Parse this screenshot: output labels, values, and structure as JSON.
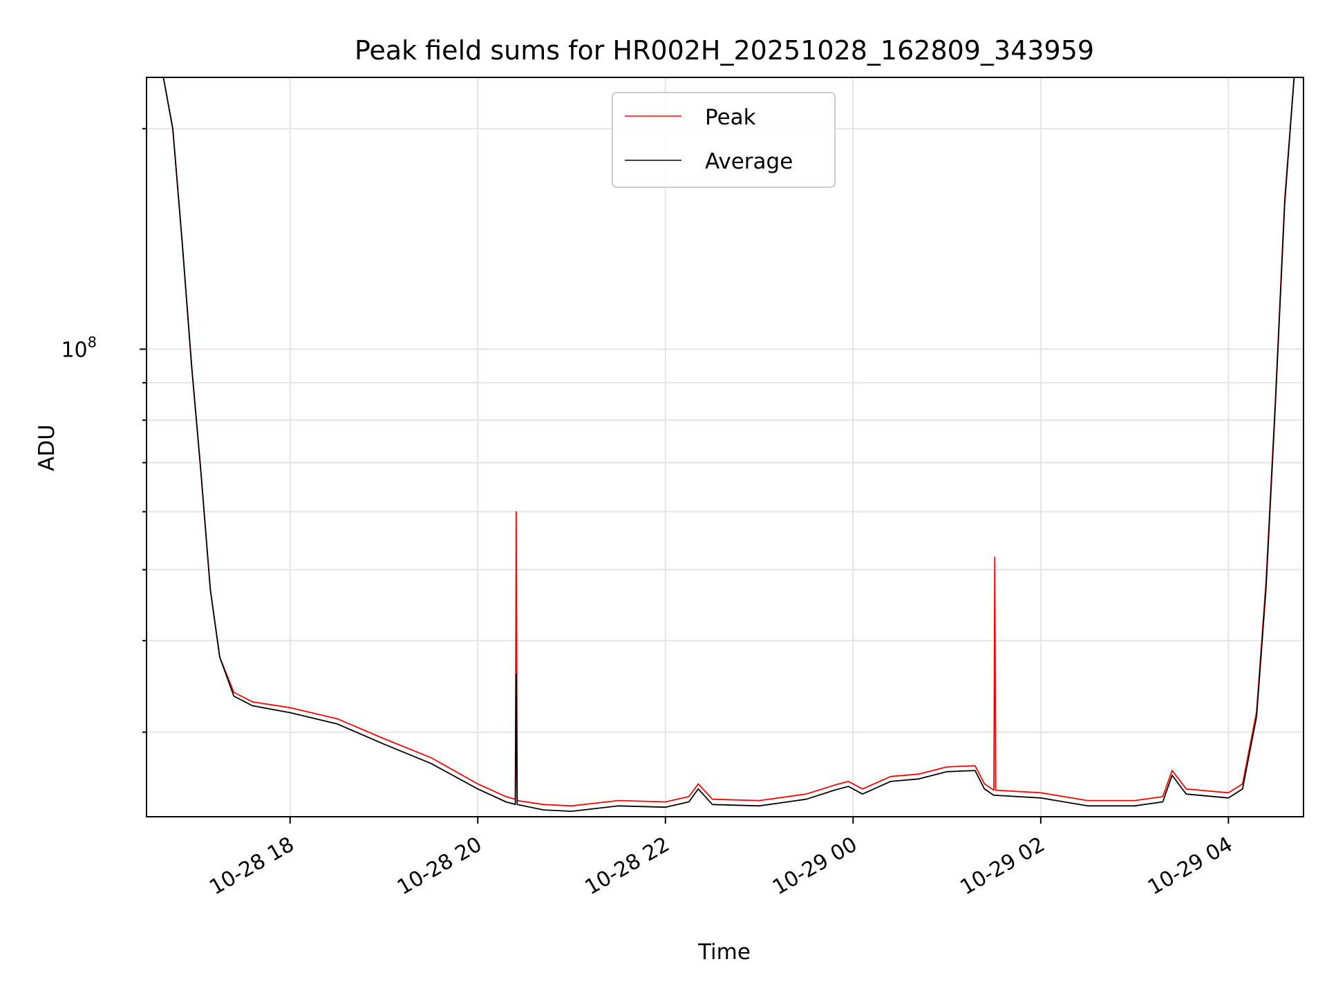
{
  "chart_data": {
    "type": "line",
    "title": "Peak field sums for HR002H_20251028_162809_343959",
    "xlabel": "Time",
    "ylabel": "ADU",
    "yscale": "log",
    "ylim": [
      23000000,
      235000000
    ],
    "xlim_hours": [
      16.47,
      28.8
    ],
    "grid": true,
    "legend_position": "top-center",
    "y_tick_label": {
      "base": "10",
      "exp": "8",
      "value": 100000000
    },
    "x_ticks": [
      {
        "hour": 18,
        "label": "10-28 18"
      },
      {
        "hour": 20,
        "label": "10-28 20"
      },
      {
        "hour": 22,
        "label": "10-28 22"
      },
      {
        "hour": 24,
        "label": "10-29 00"
      },
      {
        "hour": 26,
        "label": "10-29 02"
      },
      {
        "hour": 28,
        "label": "10-29 04"
      }
    ],
    "series": [
      {
        "name": "Peak",
        "color": "#ff0000",
        "points": [
          [
            16.65,
            235000000
          ],
          [
            16.75,
            200000000
          ],
          [
            16.85,
            140000000
          ],
          [
            16.95,
            95000000
          ],
          [
            17.05,
            68000000
          ],
          [
            17.15,
            47000000
          ],
          [
            17.25,
            38000000
          ],
          [
            17.4,
            34000000
          ],
          [
            17.6,
            33000000
          ],
          [
            18.0,
            32400000
          ],
          [
            18.5,
            31300000
          ],
          [
            19.0,
            29400000
          ],
          [
            19.5,
            27700000
          ],
          [
            20.0,
            25500000
          ],
          [
            20.3,
            24500000
          ],
          [
            20.4,
            24300000
          ],
          [
            20.41,
            60000000
          ],
          [
            20.42,
            24200000
          ],
          [
            20.7,
            23900000
          ],
          [
            21.0,
            23800000
          ],
          [
            21.5,
            24200000
          ],
          [
            22.0,
            24100000
          ],
          [
            22.25,
            24500000
          ],
          [
            22.35,
            25500000
          ],
          [
            22.5,
            24300000
          ],
          [
            23.0,
            24200000
          ],
          [
            23.5,
            24700000
          ],
          [
            23.8,
            25400000
          ],
          [
            23.95,
            25700000
          ],
          [
            24.1,
            25100000
          ],
          [
            24.4,
            26100000
          ],
          [
            24.7,
            26300000
          ],
          [
            25.0,
            26900000
          ],
          [
            25.3,
            27000000
          ],
          [
            25.4,
            25500000
          ],
          [
            25.5,
            25000000
          ],
          [
            25.51,
            52000000
          ],
          [
            25.52,
            25000000
          ],
          [
            26.0,
            24800000
          ],
          [
            26.5,
            24200000
          ],
          [
            27.0,
            24200000
          ],
          [
            27.3,
            24500000
          ],
          [
            27.4,
            26600000
          ],
          [
            27.55,
            25100000
          ],
          [
            28.0,
            24800000
          ],
          [
            28.15,
            25500000
          ],
          [
            28.3,
            32000000
          ],
          [
            28.4,
            48000000
          ],
          [
            28.5,
            85000000
          ],
          [
            28.6,
            160000000
          ],
          [
            28.7,
            235000000
          ]
        ]
      },
      {
        "name": "Average",
        "color": "#000000",
        "points": [
          [
            16.65,
            235000000
          ],
          [
            16.75,
            200000000
          ],
          [
            16.85,
            140000000
          ],
          [
            16.95,
            95000000
          ],
          [
            17.05,
            68000000
          ],
          [
            17.15,
            47000000
          ],
          [
            17.25,
            38000000
          ],
          [
            17.4,
            33600000
          ],
          [
            17.6,
            32600000
          ],
          [
            18.0,
            31900000
          ],
          [
            18.5,
            30800000
          ],
          [
            19.0,
            28900000
          ],
          [
            19.5,
            27200000
          ],
          [
            20.0,
            25100000
          ],
          [
            20.3,
            24100000
          ],
          [
            20.4,
            23900000
          ],
          [
            20.41,
            36000000
          ],
          [
            20.42,
            23900000
          ],
          [
            20.7,
            23500000
          ],
          [
            21.0,
            23400000
          ],
          [
            21.5,
            23800000
          ],
          [
            22.0,
            23700000
          ],
          [
            22.25,
            24100000
          ],
          [
            22.35,
            25100000
          ],
          [
            22.5,
            23900000
          ],
          [
            23.0,
            23800000
          ],
          [
            23.5,
            24300000
          ],
          [
            23.8,
            25000000
          ],
          [
            23.95,
            25300000
          ],
          [
            24.1,
            24700000
          ],
          [
            24.4,
            25700000
          ],
          [
            24.7,
            25900000
          ],
          [
            25.0,
            26500000
          ],
          [
            25.3,
            26600000
          ],
          [
            25.4,
            25100000
          ],
          [
            25.5,
            24600000
          ],
          [
            25.51,
            24600000
          ],
          [
            25.52,
            24600000
          ],
          [
            26.0,
            24400000
          ],
          [
            26.5,
            23800000
          ],
          [
            27.0,
            23800000
          ],
          [
            27.3,
            24100000
          ],
          [
            27.4,
            26200000
          ],
          [
            27.55,
            24700000
          ],
          [
            28.0,
            24400000
          ],
          [
            28.15,
            25100000
          ],
          [
            28.3,
            31500000
          ],
          [
            28.4,
            47000000
          ],
          [
            28.5,
            84000000
          ],
          [
            28.6,
            158000000
          ],
          [
            28.7,
            235000000
          ]
        ]
      }
    ]
  }
}
